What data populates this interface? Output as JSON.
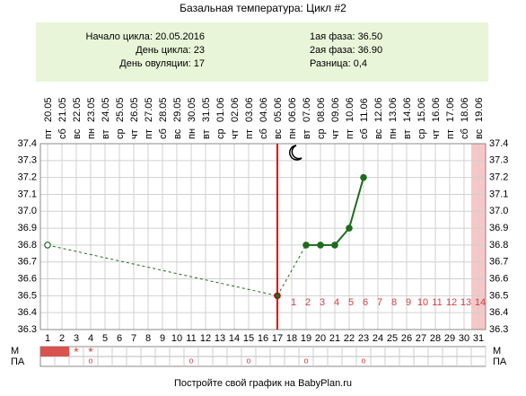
{
  "chart_data": {
    "type": "line",
    "title": "Базальная температура: Цикл #2",
    "info": {
      "left": [
        "Начало цикла: 20.05.2016",
        "День цикла: 23",
        "День овуляции: 17"
      ],
      "right": [
        "1ая фаза: 36.50",
        "2ая фаза: 36.90",
        "Разница: 0,4"
      ]
    },
    "weekdays": [
      "пт",
      "сб",
      "вс",
      "пн",
      "вт",
      "ср",
      "чт",
      "пт",
      "сб",
      "вс",
      "пн",
      "вт",
      "ср",
      "чт",
      "пт",
      "сб",
      "вс",
      "пн",
      "вт",
      "ср",
      "чт",
      "пт",
      "сб",
      "вс",
      "пн",
      "вт",
      "ср",
      "чт",
      "пт",
      "сб",
      "вс"
    ],
    "dates": [
      "20.05",
      "21.05",
      "22.05",
      "23.05",
      "24.05",
      "25.05",
      "26.05",
      "27.05",
      "28.05",
      "29.05",
      "30.05",
      "31.05",
      "01.06",
      "02.06",
      "03.06",
      "04.06",
      "05.06",
      "06.06",
      "07.06",
      "08.06",
      "09.06",
      "10.06",
      "11.06",
      "12.06",
      "13.06",
      "14.06",
      "15.06",
      "16.06",
      "17.06",
      "18.06",
      "19.06"
    ],
    "x": [
      1,
      2,
      3,
      4,
      5,
      6,
      7,
      8,
      9,
      10,
      11,
      12,
      13,
      14,
      15,
      16,
      17,
      18,
      19,
      20,
      21,
      22,
      23,
      24,
      25,
      26,
      27,
      28,
      29,
      30,
      31
    ],
    "values": [
      36.8,
      null,
      null,
      null,
      null,
      null,
      null,
      null,
      null,
      null,
      null,
      null,
      null,
      null,
      null,
      null,
      36.5,
      null,
      36.8,
      36.8,
      36.8,
      36.9,
      37.2,
      null,
      null,
      null,
      null,
      null,
      null,
      null,
      null
    ],
    "color": "#1e6b1e",
    "xlim": [
      0.5,
      31.5
    ],
    "ylim": [
      36.3,
      37.4
    ],
    "yticks": [
      36.3,
      36.4,
      36.5,
      36.6,
      36.7,
      36.8,
      36.9,
      {
        "value": 37,
        "label": "37.0"
      },
      37.1,
      37.2,
      37.3,
      37.4
    ],
    "grid": true,
    "ovulation_day": 17,
    "luteal_days": [
      1,
      2,
      3,
      4,
      5,
      6,
      7,
      8,
      9,
      10,
      11,
      12,
      13,
      14
    ],
    "highlight_day": 31,
    "period_days": [
      1,
      2
    ],
    "m_label": "М",
    "pa_label": "ПА",
    "m_marks": [
      {
        "day": 3,
        "label": "*"
      },
      {
        "day": 4,
        "label": "*"
      }
    ],
    "pa_marks": [
      {
        "day": 4,
        "label": "o"
      },
      {
        "day": 11,
        "label": "o"
      },
      {
        "day": 15,
        "label": "o"
      },
      {
        "day": 19,
        "label": "o"
      },
      {
        "day": 23,
        "label": "o"
      }
    ],
    "footer": "Постройте свой график на BabyPlan.ru"
  }
}
